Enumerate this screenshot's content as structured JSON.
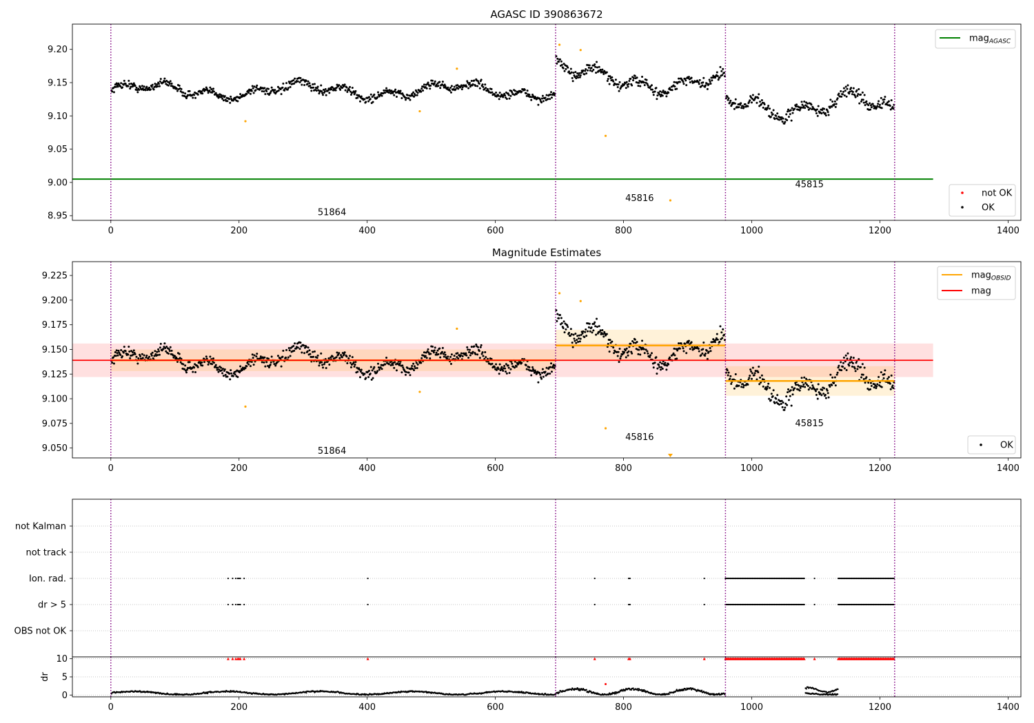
{
  "chart_data": [
    {
      "type": "scatter",
      "title": "AGASC ID 390863672",
      "xlim": [
        -60,
        1420
      ],
      "ylim": [
        8.943,
        9.238
      ],
      "xticks": [
        0,
        200,
        400,
        600,
        800,
        1000,
        1200,
        1400
      ],
      "xtick_labels": [
        "0",
        "200",
        "400",
        "600",
        "800",
        "1000",
        "1200",
        "1400"
      ],
      "yticks": [
        8.95,
        9.0,
        9.05,
        9.1,
        9.15,
        9.2
      ],
      "ytick_labels": [
        "8.95",
        "9.00",
        "9.05",
        "9.10",
        "9.15",
        "9.20"
      ],
      "obsid_boundaries": [
        0,
        694,
        959,
        1223
      ],
      "obsid_labels": [
        {
          "text": "51864",
          "x": 345,
          "y": 8.955
        },
        {
          "text": "45816",
          "x": 825,
          "y": 8.976
        },
        {
          "text": "45815",
          "x": 1090,
          "y": 8.997
        }
      ],
      "segments": [
        {
          "x0": 0,
          "x1": 694,
          "level": 9.138,
          "amp": 0.012,
          "noise": 0.006
        },
        {
          "x0": 694,
          "x1": 959,
          "level": 9.152,
          "amp": 0.016,
          "noise": 0.008
        },
        {
          "x0": 959,
          "x1": 1223,
          "level": 9.118,
          "amp": 0.02,
          "noise": 0.009
        }
      ],
      "outliers": [
        {
          "x": 210,
          "y": 9.092
        },
        {
          "x": 482,
          "y": 9.107
        },
        {
          "x": 540,
          "y": 9.171
        },
        {
          "x": 700,
          "y": 9.207
        },
        {
          "x": 733,
          "y": 9.199
        },
        {
          "x": 772,
          "y": 9.07
        },
        {
          "x": 873,
          "y": 8.973
        }
      ],
      "lines": [
        {
          "name": "mag_AGASC",
          "y": 9.005,
          "x0": -60,
          "x1": 1283,
          "color": "#008000"
        }
      ],
      "legends": [
        {
          "placement": "top-right",
          "entries": [
            {
              "label": "mag",
              "sub": "AGASC",
              "kind": "line",
              "color": "#008000"
            }
          ]
        },
        {
          "placement": "bottom-right",
          "entries": [
            {
              "label": "not OK",
              "kind": "dot",
              "color": "#ff0000"
            },
            {
              "label": "OK",
              "kind": "dot",
              "color": "#000000"
            }
          ]
        }
      ]
    },
    {
      "type": "scatter",
      "title": "Magnitude Estimates",
      "xlim": [
        -60,
        1420
      ],
      "ylim": [
        9.04,
        9.239
      ],
      "xticks": [
        0,
        200,
        400,
        600,
        800,
        1000,
        1200,
        1400
      ],
      "xtick_labels": [
        "0",
        "200",
        "400",
        "600",
        "800",
        "1000",
        "1200",
        "1400"
      ],
      "yticks": [
        9.05,
        9.075,
        9.1,
        9.125,
        9.15,
        9.175,
        9.2,
        9.225
      ],
      "ytick_labels": [
        "9.050",
        "9.075",
        "9.100",
        "9.125",
        "9.150",
        "9.175",
        "9.200",
        "9.225"
      ],
      "obsid_boundaries": [
        0,
        694,
        959,
        1223
      ],
      "obsid_labels": [
        {
          "text": "51864",
          "x": 345,
          "y": 9.047
        },
        {
          "text": "45816",
          "x": 825,
          "y": 9.061
        },
        {
          "text": "45815",
          "x": 1090,
          "y": 9.075
        }
      ],
      "mag": {
        "value": 9.139,
        "band": [
          9.122,
          9.156
        ],
        "x0": -60,
        "x1": 1283,
        "color": "#ff0000"
      },
      "mag_obsid": [
        {
          "x0": 0,
          "x1": 694,
          "value": 9.139,
          "band": [
            9.128,
            9.15
          ]
        },
        {
          "x0": 694,
          "x1": 959,
          "value": 9.154,
          "band": [
            9.138,
            9.17
          ]
        },
        {
          "x0": 959,
          "x1": 1223,
          "value": 9.118,
          "band": [
            9.103,
            9.133
          ]
        }
      ],
      "outliers": [
        {
          "x": 210,
          "y": 9.092
        },
        {
          "x": 482,
          "y": 9.107
        },
        {
          "x": 540,
          "y": 9.171
        },
        {
          "x": 700,
          "y": 9.207
        },
        {
          "x": 733,
          "y": 9.199
        },
        {
          "x": 772,
          "y": 9.07
        },
        {
          "x": 873,
          "y": 9.043
        }
      ],
      "legends": [
        {
          "placement": "top-right",
          "entries": [
            {
              "label": "mag",
              "sub": "OBSID",
              "kind": "line",
              "color": "#ffa500"
            },
            {
              "label": "mag",
              "kind": "line",
              "color": "#ff0000"
            }
          ]
        },
        {
          "placement": "bottom-right",
          "entries": [
            {
              "label": "OK",
              "kind": "dot",
              "color": "#000000"
            }
          ]
        }
      ]
    },
    {
      "type": "scatter",
      "title": "",
      "xlim": [
        -60,
        1420
      ],
      "categories": [
        "not Kalman",
        "not track",
        "Ion. rad.",
        "dr > 5",
        "OBS not OK"
      ],
      "flag_points": {
        "isolated": [
          183,
          190,
          195,
          198,
          200,
          202,
          208,
          401,
          755,
          808,
          810,
          926,
          1098
        ],
        "dense_ranges": [
          [
            959,
            1083
          ],
          [
            1135,
            1223
          ]
        ],
        "rows": [
          "Ion. rad.",
          "dr > 5"
        ]
      },
      "obsid_boundaries": [
        0,
        694,
        959,
        1223
      ]
    },
    {
      "type": "scatter",
      "ylabel": "dr",
      "xlim": [
        -60,
        1420
      ],
      "ylim": [
        -0.5,
        10.5
      ],
      "yticks": [
        0,
        5,
        10
      ],
      "ytick_labels": [
        "0",
        "5",
        "10"
      ],
      "xticks": [
        0,
        200,
        400,
        600,
        800,
        1000,
        1200,
        1400
      ],
      "xtick_labels": [
        "0",
        "200",
        "400",
        "600",
        "800",
        "1000",
        "1200",
        "1400"
      ],
      "clipped_value": 10,
      "outliers": [
        {
          "x": 772,
          "y": 3.0
        }
      ],
      "obsid_boundaries": [
        0,
        694,
        959,
        1223
      ]
    }
  ]
}
